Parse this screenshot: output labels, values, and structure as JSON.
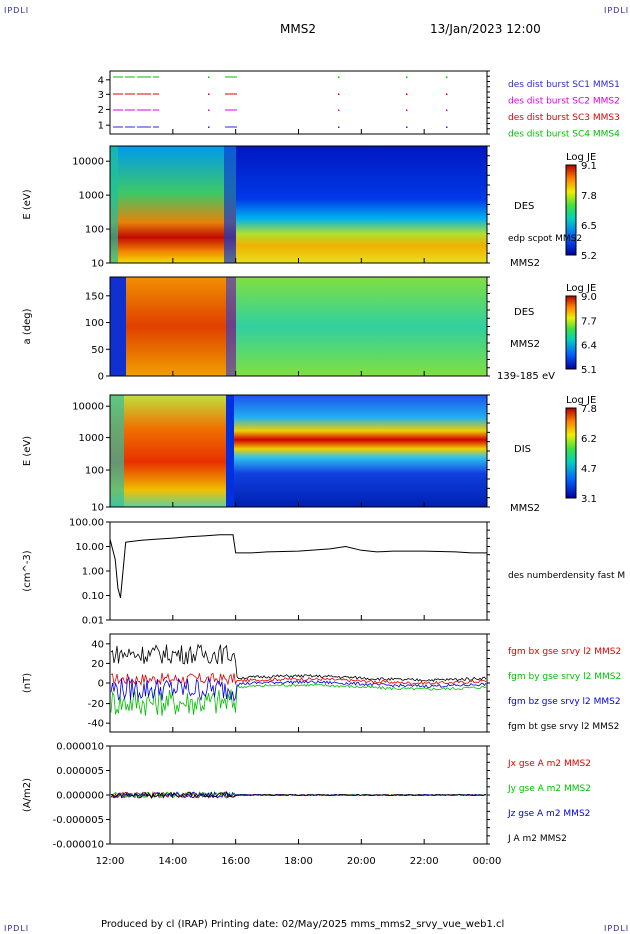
{
  "header": {
    "corner_tl": "IPDLI",
    "corner_tr": "IPDLI",
    "corner_bl": "IPDLI",
    "corner_br": "IPDLI",
    "mission": "MMS2",
    "datetime": "13/Jan/2023 12:00"
  },
  "footer": {
    "text": "Produced by cl (IRAP)   Printing date: 02/May/2025   mms_mms2_srvy_vue_web1.cl"
  },
  "colors": {
    "red": "#e00000",
    "green": "#00c000",
    "blue": "#0000e0",
    "magenta": "#e000e0",
    "black": "#000000"
  },
  "chart_data": [
    {
      "type": "line",
      "panel": "burst-availability",
      "yticks": [
        "1",
        "2",
        "3",
        "4"
      ],
      "series": [
        {
          "name": "des dist burst SC1 MMS1",
          "color": "#2a2ad0"
        },
        {
          "name": "des dist burst SC2 MMS2",
          "color": "#e000e0"
        },
        {
          "name": "des dist burst SC3 MMS3",
          "color": "#e00000"
        },
        {
          "name": "des dist burst SC4 MMS4",
          "color": "#00c000"
        }
      ]
    },
    {
      "type": "heatmap",
      "panel": "des-energy",
      "ylabel": "E (eV)",
      "yticks": [
        "10",
        "100",
        "1000",
        "10000"
      ],
      "label": "DES",
      "sublabel": "MMS2",
      "overlay": "edp scpot MMS2",
      "colorbar": {
        "title": "Log JE",
        "ticks": [
          "9.1",
          "7.8",
          "6.5",
          "5.2"
        ]
      }
    },
    {
      "type": "heatmap",
      "panel": "des-pitch-angle",
      "ylabel": "a (deg)",
      "yticks": [
        "0",
        "50",
        "100",
        "150"
      ],
      "label": "DES",
      "sublabel": "MMS2",
      "range_label": "139-185 eV",
      "colorbar": {
        "title": "Log JE",
        "ticks": [
          "9.0",
          "7.7",
          "6.4",
          "5.1"
        ]
      }
    },
    {
      "type": "heatmap",
      "panel": "dis-energy",
      "ylabel": "E (eV)",
      "yticks": [
        "10",
        "100",
        "1000",
        "10000"
      ],
      "label": "DIS",
      "sublabel": "MMS2",
      "colorbar": {
        "title": "Log JE",
        "ticks": [
          "7.8",
          "6.2",
          "4.7",
          "3.1"
        ]
      }
    },
    {
      "type": "line",
      "panel": "density",
      "ylabel": "(cm^-3)",
      "yticks": [
        "0.01",
        "0.10",
        "1.00",
        "10.00",
        "100.00"
      ],
      "log": true,
      "ylim": [
        0.01,
        100
      ],
      "series": [
        {
          "name": "des numberdensity fast M",
          "color": "#000000",
          "x": [
            "12:00",
            "12:10",
            "12:15",
            "12:20",
            "12:30",
            "13:00",
            "13:30",
            "14:00",
            "14:30",
            "15:00",
            "15:30",
            "15:55",
            "16:00",
            "16:30",
            "17:00",
            "18:00",
            "19:00",
            "19:30",
            "20:00",
            "20:30",
            "21:00",
            "22:00",
            "23:00",
            "23:30",
            "00:00"
          ],
          "y": [
            20,
            3,
            0.2,
            0.08,
            15,
            18,
            20,
            22,
            25,
            27,
            30,
            30,
            5.5,
            5.5,
            6,
            6.5,
            8,
            10,
            7,
            6,
            6.5,
            6.5,
            6,
            5.5,
            5.5
          ]
        }
      ]
    },
    {
      "type": "line",
      "panel": "magnetic-field",
      "ylabel": "(nT)",
      "yticks": [
        "-40",
        "-20",
        "0",
        "20",
        "40"
      ],
      "ylim": [
        -48,
        50
      ],
      "series": [
        {
          "name": "fgm bx gse srvy l2 MMS2",
          "color": "#e00000"
        },
        {
          "name": "fgm by gse srvy l2 MMS2",
          "color": "#00c000"
        },
        {
          "name": "fgm bz gse srvy l2 MMS2",
          "color": "#0000e0"
        },
        {
          "name": "fgm bt gse srvy l2 MMS2",
          "color": "#000000"
        }
      ]
    },
    {
      "type": "line",
      "panel": "current",
      "ylabel": "(A/m2)",
      "yticks": [
        "-0.000010",
        "-0.000005",
        "0.000000",
        "0.000005",
        "0.000010"
      ],
      "ylim": [
        -1e-05,
        1e-05
      ],
      "series": [
        {
          "name": "Jx gse A m2 MMS2",
          "color": "#e00000"
        },
        {
          "name": "Jy gse A m2 MMS2",
          "color": "#00c000"
        },
        {
          "name": "Jz gse A m2 MMS2",
          "color": "#0000e0"
        },
        {
          "name": "J A m2 MMS2",
          "color": "#000000"
        }
      ]
    }
  ],
  "time_axis": {
    "ticks": [
      "12:00",
      "14:00",
      "16:00",
      "18:00",
      "20:00",
      "22:00",
      "00:00"
    ]
  }
}
